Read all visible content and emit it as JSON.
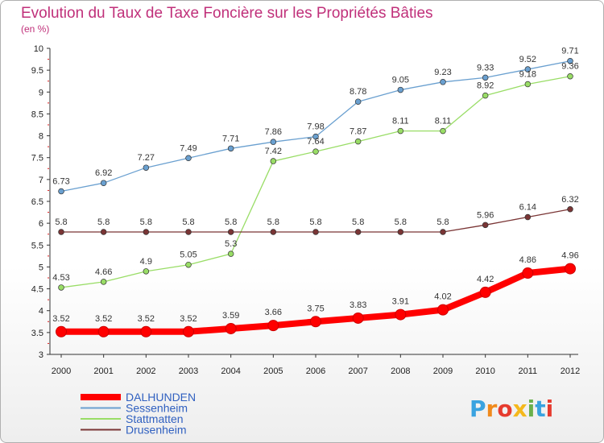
{
  "chart_data": {
    "type": "line",
    "title": "Evolution du Taux de Taxe Foncière sur les Propriétés Bâties",
    "subtitle": "(en %)",
    "x": [
      "2000",
      "2001",
      "2002",
      "2003",
      "2004",
      "2005",
      "2006",
      "2007",
      "2008",
      "2009",
      "2010",
      "2011",
      "2012"
    ],
    "ylim": [
      3,
      10
    ],
    "yticks": [
      "3",
      "3.5",
      "4",
      "4.5",
      "5",
      "5.5",
      "6",
      "6.5",
      "7",
      "7.5",
      "8",
      "8.5",
      "9",
      "9.5",
      "10"
    ],
    "grid": false,
    "legend_position": "bottom-left",
    "series": [
      {
        "name": "DALHUNDEN",
        "color": "#ff0000",
        "values": [
          3.52,
          3.52,
          3.52,
          3.52,
          3.59,
          3.66,
          3.75,
          3.83,
          3.91,
          4.02,
          4.42,
          4.86,
          4.96
        ],
        "labels": [
          "3.52",
          "3.52",
          "3.52",
          "3.52",
          "3.59",
          "3.66",
          "3.75",
          "3.83",
          "3.91",
          "4.02",
          "4.42",
          "4.86",
          "4.96"
        ]
      },
      {
        "name": "Sessenheim",
        "color": "#6aa0d0",
        "values": [
          6.73,
          6.92,
          7.27,
          7.49,
          7.71,
          7.86,
          7.98,
          8.78,
          9.05,
          9.23,
          9.33,
          9.52,
          9.71
        ],
        "labels": [
          "6.73",
          "6.92",
          "7.27",
          "7.49",
          "7.71",
          "7.86",
          "7.98",
          "8.78",
          "9.05",
          "9.23",
          "9.33",
          "9.52",
          "9.71"
        ]
      },
      {
        "name": "Stattmatten",
        "color": "#99dd66",
        "values": [
          4.53,
          4.66,
          4.9,
          5.05,
          5.3,
          7.42,
          7.64,
          7.87,
          8.11,
          8.11,
          8.92,
          9.18,
          9.36
        ],
        "labels": [
          "4.53",
          "4.66",
          "4.9",
          "5.05",
          "5.3",
          "7.42",
          "7.64",
          "7.87",
          "8.11",
          "8.11",
          "8.92",
          "9.18",
          "9.36"
        ]
      },
      {
        "name": "Drusenheim",
        "color": "#7a3535",
        "values": [
          5.8,
          5.8,
          5.8,
          5.8,
          5.8,
          5.8,
          5.8,
          5.8,
          5.8,
          5.8,
          5.96,
          6.14,
          6.32
        ],
        "labels": [
          "5.8",
          "5.8",
          "5.8",
          "5.8",
          "5.8",
          "5.8",
          "5.8",
          "5.8",
          "5.8",
          "5.8",
          "5.96",
          "6.14",
          "6.32"
        ]
      }
    ]
  },
  "logo": {
    "text": "Proxiti",
    "colors": [
      "#3aa3e0",
      "#f08a1c",
      "#e63b2e",
      "#f5b81c",
      "#6ab04c",
      "#3aa3e0",
      "#e63b2e"
    ]
  }
}
